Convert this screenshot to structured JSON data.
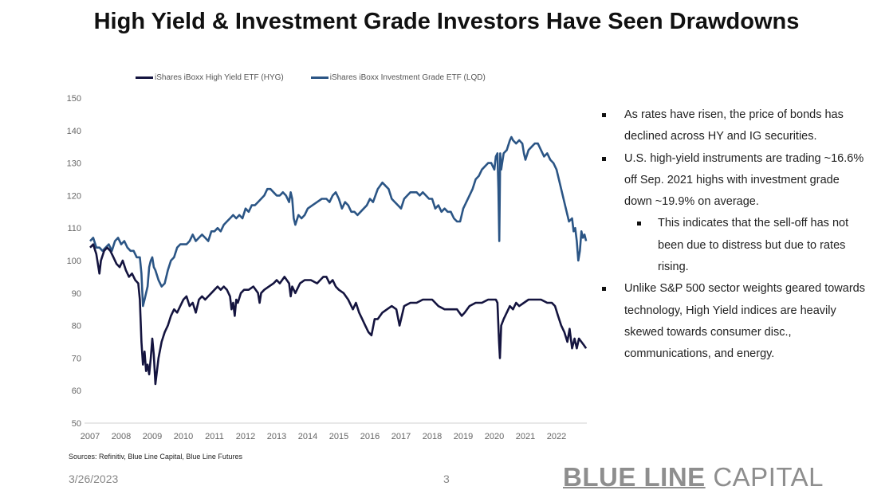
{
  "title": "High Yield & Investment Grade Investors Have Seen Drawdowns",
  "legend": [
    {
      "label": "iShares iBoxx High Yield ETF (HYG)",
      "color": "#14143f"
    },
    {
      "label": "iShares iBoxx Investment Grade ETF (LQD)",
      "color": "#2b5585"
    }
  ],
  "bullets": [
    {
      "level": 1,
      "text": "As rates have risen, the price of bonds has declined across HY and IG securities."
    },
    {
      "level": 1,
      "text": "U.S. high-yield instruments are trading ~16.6% off Sep. 2021 highs with investment grade down ~19.9% on average."
    },
    {
      "level": 2,
      "text": "This indicates that the sell-off has not been due to distress but due to rates rising."
    },
    {
      "level": 1,
      "text": "Unlike S&P 500 sector weights geared towards technology, High Yield indices are heavily skewed towards consumer disc., communications, and energy."
    }
  ],
  "sources": "Sources: Refinitiv, Blue Line Capital, Blue Line Futures",
  "footer": {
    "date": "3/26/2023",
    "page": "3",
    "brand_bold": "BLUE LINE",
    "brand_light": "CAPITAL"
  },
  "chart_data": {
    "type": "line",
    "title": "High Yield & Investment Grade Investors Have Seen Drawdowns",
    "xlabel": "",
    "ylabel": "",
    "xlim": [
      2007,
      2022.95
    ],
    "ylim": [
      50,
      150
    ],
    "yticks": [
      50,
      60,
      70,
      80,
      90,
      100,
      110,
      120,
      130,
      140,
      150
    ],
    "xticks": [
      "2007",
      "2008",
      "2009",
      "2010",
      "2011",
      "2012",
      "2013",
      "2014",
      "2015",
      "2016",
      "2017",
      "2018",
      "2019",
      "2020",
      "2021",
      "2022"
    ],
    "grid": false,
    "legend_position": "top",
    "series": [
      {
        "name": "iShares iBoxx High Yield ETF (HYG)",
        "color": "#14143f",
        "x": [
          2007.0,
          2007.1,
          2007.2,
          2007.3,
          2007.35,
          2007.45,
          2007.55,
          2007.65,
          2007.75,
          2007.85,
          2007.95,
          2008.05,
          2008.15,
          2008.25,
          2008.35,
          2008.45,
          2008.55,
          2008.6,
          2008.65,
          2008.7,
          2008.75,
          2008.8,
          2008.85,
          2008.9,
          2008.95,
          2009.0,
          2009.05,
          2009.1,
          2009.2,
          2009.3,
          2009.4,
          2009.5,
          2009.6,
          2009.7,
          2009.8,
          2009.9,
          2010.0,
          2010.1,
          2010.2,
          2010.3,
          2010.4,
          2010.5,
          2010.6,
          2010.7,
          2010.8,
          2010.9,
          2011.0,
          2011.1,
          2011.2,
          2011.3,
          2011.4,
          2011.5,
          2011.55,
          2011.6,
          2011.65,
          2011.7,
          2011.75,
          2011.85,
          2011.95,
          2012.1,
          2012.25,
          2012.4,
          2012.45,
          2012.5,
          2012.6,
          2012.75,
          2012.9,
          2013.0,
          2013.1,
          2013.25,
          2013.4,
          2013.45,
          2013.5,
          2013.6,
          2013.75,
          2013.9,
          2014.1,
          2014.3,
          2014.5,
          2014.6,
          2014.7,
          2014.8,
          2014.9,
          2015.0,
          2015.15,
          2015.3,
          2015.45,
          2015.55,
          2015.65,
          2015.75,
          2015.85,
          2015.95,
          2016.05,
          2016.15,
          2016.25,
          2016.4,
          2016.55,
          2016.7,
          2016.85,
          2016.95,
          2017.1,
          2017.3,
          2017.5,
          2017.7,
          2017.9,
          2018.0,
          2018.1,
          2018.2,
          2018.4,
          2018.6,
          2018.8,
          2018.95,
          2019.05,
          2019.2,
          2019.4,
          2019.6,
          2019.8,
          2019.95,
          2020.05,
          2020.1,
          2020.15,
          2020.18,
          2020.22,
          2020.3,
          2020.4,
          2020.5,
          2020.6,
          2020.7,
          2020.8,
          2020.95,
          2021.1,
          2021.3,
          2021.5,
          2021.7,
          2021.85,
          2021.95,
          2022.05,
          2022.15,
          2022.25,
          2022.35,
          2022.42,
          2022.5,
          2022.58,
          2022.65,
          2022.72,
          2022.8,
          2022.88,
          2022.95
        ],
        "values": [
          104,
          105,
          102,
          96,
          100,
          103,
          104,
          103,
          101,
          99,
          98,
          100,
          97,
          95,
          96,
          94,
          93,
          88,
          75,
          68,
          72,
          66,
          68,
          65,
          70,
          76,
          71,
          62,
          70,
          75,
          78,
          80,
          83,
          85,
          84,
          86,
          88,
          89,
          86,
          87,
          84,
          88,
          89,
          88,
          89,
          90,
          91,
          92,
          91,
          92,
          91,
          89,
          85,
          87,
          83,
          88,
          87,
          90,
          91,
          91,
          92,
          90,
          87,
          90,
          91,
          92,
          93,
          94,
          93,
          95,
          93,
          89,
          92,
          90,
          93,
          94,
          94,
          93,
          95,
          95,
          93,
          94,
          92,
          91,
          90,
          88,
          85,
          87,
          84,
          82,
          80,
          78,
          77,
          82,
          82,
          84,
          85,
          86,
          85,
          80,
          86,
          87,
          87,
          88,
          88,
          88,
          87,
          86,
          85,
          85,
          85,
          83,
          84,
          86,
          87,
          87,
          88,
          88,
          88,
          87,
          75,
          70,
          80,
          82,
          84,
          86,
          85,
          87,
          86,
          87,
          88,
          88,
          88,
          87,
          87,
          86,
          83,
          80,
          78,
          75,
          79,
          73,
          76,
          73,
          76,
          75,
          74,
          73
        ]
      },
      {
        "name": "iShares iBoxx Investment Grade ETF (LQD)",
        "color": "#2b5585",
        "x": [
          2007.0,
          2007.1,
          2007.2,
          2007.3,
          2007.4,
          2007.5,
          2007.6,
          2007.7,
          2007.8,
          2007.9,
          2008.0,
          2008.1,
          2008.2,
          2008.3,
          2008.4,
          2008.5,
          2008.6,
          2008.65,
          2008.7,
          2008.75,
          2008.8,
          2008.85,
          2008.9,
          2008.95,
          2009.0,
          2009.05,
          2009.1,
          2009.2,
          2009.3,
          2009.4,
          2009.5,
          2009.6,
          2009.7,
          2009.8,
          2009.9,
          2010.0,
          2010.1,
          2010.2,
          2010.3,
          2010.4,
          2010.5,
          2010.6,
          2010.7,
          2010.8,
          2010.9,
          2011.0,
          2011.1,
          2011.2,
          2011.3,
          2011.4,
          2011.5,
          2011.6,
          2011.7,
          2011.8,
          2011.9,
          2012.0,
          2012.1,
          2012.2,
          2012.3,
          2012.4,
          2012.5,
          2012.6,
          2012.7,
          2012.8,
          2012.9,
          2013.0,
          2013.1,
          2013.2,
          2013.3,
          2013.4,
          2013.45,
          2013.5,
          2013.55,
          2013.6,
          2013.7,
          2013.8,
          2013.9,
          2014.0,
          2014.15,
          2014.3,
          2014.45,
          2014.6,
          2014.7,
          2014.8,
          2014.9,
          2015.0,
          2015.1,
          2015.2,
          2015.3,
          2015.4,
          2015.5,
          2015.6,
          2015.7,
          2015.8,
          2015.9,
          2016.0,
          2016.1,
          2016.25,
          2016.4,
          2016.5,
          2016.6,
          2016.7,
          2016.8,
          2016.9,
          2017.0,
          2017.1,
          2017.2,
          2017.3,
          2017.4,
          2017.5,
          2017.6,
          2017.7,
          2017.8,
          2017.9,
          2018.0,
          2018.1,
          2018.2,
          2018.3,
          2018.4,
          2018.5,
          2018.6,
          2018.7,
          2018.8,
          2018.9,
          2019.0,
          2019.1,
          2019.2,
          2019.3,
          2019.4,
          2019.5,
          2019.6,
          2019.7,
          2019.8,
          2019.9,
          2020.0,
          2020.05,
          2020.1,
          2020.13,
          2020.16,
          2020.19,
          2020.22,
          2020.25,
          2020.3,
          2020.4,
          2020.5,
          2020.55,
          2020.6,
          2020.7,
          2020.8,
          2020.9,
          2020.95,
          2021.0,
          2021.1,
          2021.2,
          2021.3,
          2021.4,
          2021.5,
          2021.6,
          2021.7,
          2021.8,
          2021.9,
          2022.0,
          2022.1,
          2022.2,
          2022.3,
          2022.4,
          2022.5,
          2022.55,
          2022.6,
          2022.65,
          2022.7,
          2022.75,
          2022.8,
          2022.85,
          2022.9,
          2022.95
        ],
        "values": [
          106,
          107,
          104,
          104,
          103,
          104,
          105,
          103,
          106,
          107,
          105,
          106,
          104,
          103,
          103,
          101,
          101,
          96,
          86,
          88,
          90,
          92,
          98,
          100,
          101,
          98,
          97,
          94,
          92,
          93,
          97,
          100,
          101,
          104,
          105,
          105,
          105,
          106,
          108,
          106,
          107,
          108,
          107,
          106,
          109,
          109,
          110,
          109,
          111,
          112,
          113,
          114,
          113,
          114,
          113,
          116,
          115,
          117,
          117,
          118,
          119,
          120,
          122,
          122,
          121,
          120,
          120,
          121,
          120,
          118,
          121,
          119,
          113,
          111,
          114,
          113,
          114,
          116,
          117,
          118,
          119,
          119,
          118,
          120,
          121,
          119,
          116,
          118,
          117,
          115,
          115,
          114,
          115,
          116,
          117,
          119,
          118,
          122,
          124,
          123,
          122,
          119,
          118,
          117,
          116,
          119,
          120,
          121,
          121,
          121,
          120,
          121,
          120,
          119,
          119,
          116,
          117,
          115,
          116,
          115,
          115,
          113,
          112,
          112,
          116,
          118,
          120,
          122,
          125,
          126,
          128,
          129,
          130,
          130,
          128,
          132,
          133,
          122,
          106,
          133,
          128,
          130,
          133,
          134,
          137,
          138,
          137,
          136,
          137,
          136,
          133,
          131,
          134,
          135,
          136,
          136,
          134,
          132,
          133,
          131,
          130,
          128,
          124,
          120,
          116,
          112,
          113,
          109,
          110,
          106,
          100,
          103,
          109,
          107,
          108,
          106
        ]
      }
    ]
  }
}
